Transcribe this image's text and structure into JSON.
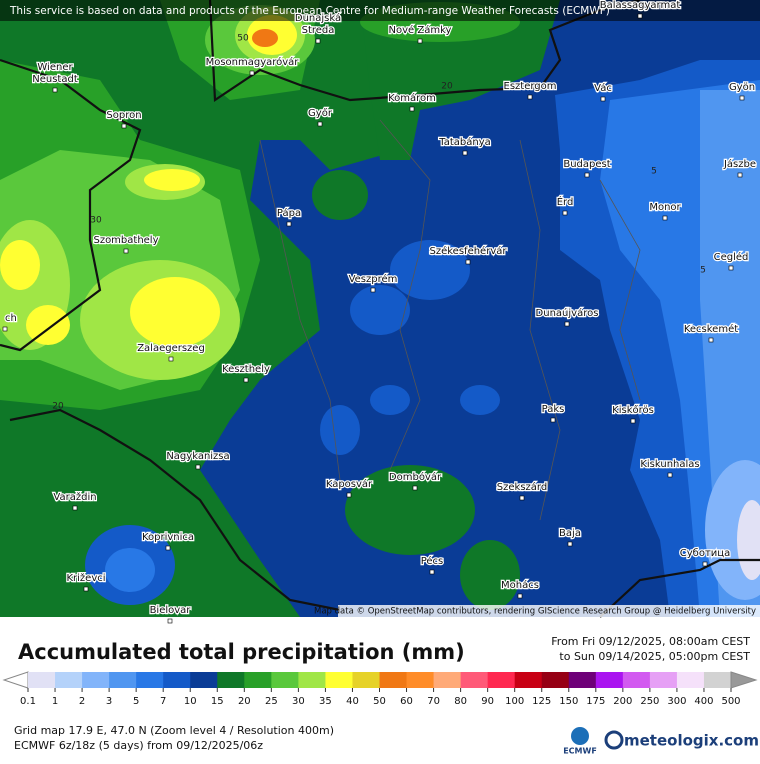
{
  "banner": "This service is based on data and products of the European Centre for Medium-range Weather Forecasts (ECMWF)",
  "cities": [
    {
      "lines": [
        "Balassagyarmat"
      ]
    },
    {
      "lines": [
        "Dunajská",
        "Streda"
      ]
    },
    {
      "lines": [
        "Nové Zámky"
      ]
    },
    {
      "lines": [
        "Mosonmagyaróvár"
      ]
    },
    {
      "lines": [
        "Wiener",
        "Neustadt"
      ]
    },
    {
      "lines": [
        "Esztergom"
      ]
    },
    {
      "lines": [
        "Vác"
      ]
    },
    {
      "lines": [
        "Gyön"
      ]
    },
    {
      "lines": [
        "Komárom"
      ]
    },
    {
      "lines": [
        "Győr"
      ]
    },
    {
      "lines": [
        "Sopron"
      ]
    },
    {
      "lines": [
        "Tatabánya"
      ]
    },
    {
      "lines": [
        "Budapest"
      ]
    },
    {
      "lines": [
        "Jászbe"
      ]
    },
    {
      "lines": [
        "Érd"
      ]
    },
    {
      "lines": [
        "Pápa"
      ]
    },
    {
      "lines": [
        "Monor"
      ]
    },
    {
      "lines": [
        "Szombathely"
      ]
    },
    {
      "lines": [
        "Székesfehérvár"
      ]
    },
    {
      "lines": [
        "Cegléd"
      ]
    },
    {
      "lines": [
        "Veszprém"
      ]
    },
    {
      "lines": [
        "Dunaújváros"
      ]
    },
    {
      "lines": [
        "Kecskemét"
      ]
    },
    {
      "lines": [
        "Zalaegerszeg"
      ]
    },
    {
      "lines": [
        "Keszthely"
      ]
    },
    {
      "lines": [
        "Paks"
      ]
    },
    {
      "lines": [
        "Kiskőrös"
      ]
    },
    {
      "lines": [
        "Kiskunhalas"
      ]
    },
    {
      "lines": [
        "Nagykanizsa"
      ]
    },
    {
      "lines": [
        "Kaposvár"
      ]
    },
    {
      "lines": [
        "Dombóvár"
      ]
    },
    {
      "lines": [
        "Szekszárd"
      ]
    },
    {
      "lines": [
        "Varaždin"
      ]
    },
    {
      "lines": [
        "Baja"
      ]
    },
    {
      "lines": [
        "Koprivnica"
      ]
    },
    {
      "lines": [
        "Суботица"
      ]
    },
    {
      "lines": [
        "Pécs"
      ]
    },
    {
      "lines": [
        "Križevci"
      ]
    },
    {
      "lines": [
        "Mohács"
      ]
    },
    {
      "lines": [
        "Bielovar"
      ]
    },
    {
      "lines": [
        "ch"
      ]
    }
  ],
  "contour_labels": [
    "20",
    "30",
    "5",
    "5",
    "20",
    "50"
  ],
  "attribution": "Map data © OpenStreetMap contributors, rendering GIScience Research Group @ Heidelberg University",
  "title": "Accumulated total precipitation (mm)",
  "period": [
    "From Fri 09/12/2025, 08:00am CEST",
    "to Sun 09/14/2025, 05:00pm CEST"
  ],
  "legend": {
    "labels": [
      0.1,
      1,
      2,
      3,
      5,
      7,
      10,
      15,
      20,
      25,
      30,
      35,
      40,
      50,
      60,
      70,
      80,
      90,
      100,
      125,
      150,
      175,
      200,
      250,
      300,
      400,
      500
    ],
    "colors": [
      "#e1e1f5",
      "#b4d2fa",
      "#82b4fa",
      "#5096f0",
      "#2878e6",
      "#145ac8",
      "#0a3c96",
      "#0f7828",
      "#28a028",
      "#5ac83c",
      "#a0e646",
      "#ffff32",
      "#e6d228",
      "#f07814",
      "#ff8c28",
      "#ffaa78",
      "#ff5a78",
      "#ff2850",
      "#c80014",
      "#960014",
      "#6e0078",
      "#aa14f0",
      "#d25af0",
      "#e6a0f5",
      "#f5e1fa",
      "#d2d2d2"
    ]
  },
  "footer": [
    "Grid map 17.9 E, 47.0 N (Zoom level 4 / Resolution 400m)",
    "ECMWF 6z/18z (5 days)  from  09/12/2025/06z"
  ],
  "logos": [
    "ECMWF",
    "meteologix.com"
  ]
}
